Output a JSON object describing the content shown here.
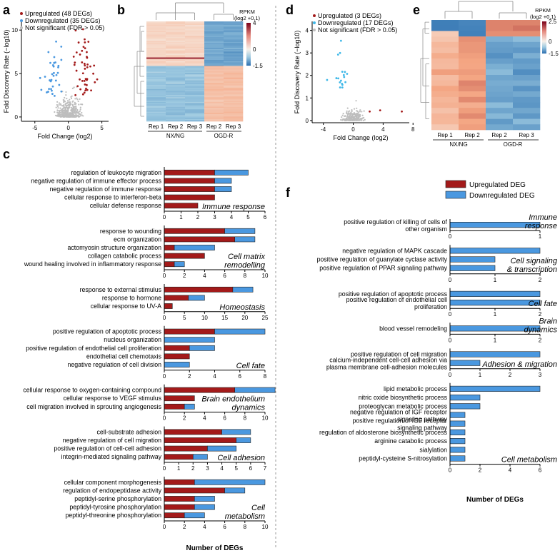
{
  "colors": {
    "up": "#a31a1a",
    "down": "#4a98e0",
    "ns": "#bdbdbd",
    "vol_down_d": "#3fb8e8",
    "heat_low": "#2166ac",
    "heat_mid": "#f7f7f7",
    "heat_high": "#67001f"
  },
  "panels": {
    "a": "a",
    "b": "b",
    "c": "c",
    "d": "d",
    "e": "e",
    "f": "f"
  },
  "volcano_a": {
    "legend": [
      "Upregulated (48 DEGs)",
      "Downregulated (35 DEGs)",
      "Not significant (FDR > 0.05)"
    ],
    "xlabel": "Fold Change (log2)",
    "ylabel": "Fold Discovery Rate (−log10)",
    "xticks": [
      "-5",
      "0",
      "5"
    ],
    "yticks": [
      "0",
      "5",
      "10"
    ],
    "xlim": [
      -7,
      6
    ],
    "ylim": [
      -0.5,
      11
    ]
  },
  "volcano_d": {
    "legend": [
      "Upregulated (3 DEGs)",
      "Downregulated (17 DEGs)",
      "Not significant (FDR > 0.05)"
    ],
    "xlabel": "Fold Change (log2)",
    "ylabel": "Fold Discovery Rate (−log10)",
    "xticks": [
      "-4",
      "0",
      "4",
      "8"
    ],
    "yticks": [
      "0",
      "1",
      "2",
      "3",
      "4"
    ],
    "xlim": [
      -5.5,
      7.5
    ],
    "ylim": [
      -0.1,
      4.4
    ]
  },
  "heatmap_b": {
    "scale_title": [
      "RPKM",
      "(log2 +0,1)"
    ],
    "scale_ticks": [
      "4",
      "0",
      "-1.5"
    ],
    "reps": [
      "Rep 1",
      "Rep 2",
      "Rep 3",
      "Rep 2",
      "Rep 3"
    ],
    "groups": [
      "NX/NG",
      "OGD-R"
    ]
  },
  "heatmap_e": {
    "scale_title": [
      "RPKM",
      "(log2 +0,1)"
    ],
    "scale_ticks": [
      "2.5",
      "0",
      "-1.5"
    ],
    "reps": [
      "Rep 1",
      "Rep 2",
      "Rep 2",
      "Rep 3"
    ],
    "groups": [
      "NX/NG",
      "OGD-R"
    ]
  },
  "chart_data": [
    {
      "type": "bar",
      "panel": "c",
      "stacked": true,
      "xlabel": "Number of DEGs",
      "series_names": [
        "Upregulated DEG",
        "Downregulated DEG"
      ],
      "groups": [
        {
          "title": "Immune response",
          "xmax": 6,
          "ticks": [
            "0",
            "1",
            "2",
            "3",
            "4",
            "5",
            "6"
          ],
          "terms": [
            "regulation of leukocyte migration",
            "negative regulation of immune effector process",
            "negative regulation of immune response",
            "cellular response to interferon-beta",
            "cellular defense response"
          ],
          "up": [
            3,
            3,
            3,
            3,
            2
          ],
          "down": [
            2,
            1,
            1,
            0,
            0
          ]
        },
        {
          "title": "Cell matrix remodelling",
          "xmax": 10,
          "ticks": [
            "0",
            "2",
            "4",
            "6",
            "8",
            "10"
          ],
          "terms": [
            "response to wounding",
            "ecm organization",
            "actomyosin structure organization",
            "collagen catabolic process",
            "wound healing involved in inflammatory response"
          ],
          "up": [
            6,
            7,
            1,
            4,
            1
          ],
          "down": [
            3,
            2,
            4,
            0,
            1
          ]
        },
        {
          "title": "Homeostasis",
          "xmax": 25,
          "ticks": [
            "0",
            "5",
            "10",
            "15",
            "20",
            "25"
          ],
          "terms": [
            "response to external stimulus",
            "response to hormone",
            "cellular response to UV-A"
          ],
          "up": [
            17,
            6,
            2
          ],
          "down": [
            5,
            4,
            0
          ]
        },
        {
          "title": "Cell fate",
          "xmax": 8,
          "ticks": [
            "0",
            "2",
            "4",
            "6",
            "8"
          ],
          "terms": [
            "positive regulation of apoptotic process",
            "nucleus organization",
            "positive regulation of endothelial cell proliferation",
            "endothelial cell chemotaxis",
            "negative regulation of cell division"
          ],
          "up": [
            4,
            0,
            2,
            2,
            0
          ],
          "down": [
            4,
            4,
            2,
            0,
            2
          ]
        },
        {
          "title": "Brain endothelium dynamics",
          "xmax": 10,
          "ticks": [
            "0",
            "2",
            "4",
            "6",
            "8",
            "10"
          ],
          "terms": [
            "cellular response to oxygen-containing compound",
            "cellular response to VEGF stimulus",
            "cell migration involved in sprouting angiogenesis"
          ],
          "up": [
            7,
            3,
            2
          ],
          "down": [
            4,
            0,
            1
          ]
        },
        {
          "title": "Cell adhesion",
          "xmax": 7,
          "ticks": [
            "0",
            "1",
            "2",
            "3",
            "4",
            "5",
            "6",
            "7"
          ],
          "terms": [
            "cell-substrate adhesion",
            "negative regulation of cell migration",
            "positive regulation of cell-cell adhesion",
            "integrin-mediated signaling pathway"
          ],
          "up": [
            4,
            5,
            3,
            2
          ],
          "down": [
            2,
            1,
            2,
            1
          ]
        },
        {
          "title": "Cell metabolism",
          "xmax": 10,
          "ticks": [
            "0",
            "2",
            "4",
            "6",
            "8",
            "10"
          ],
          "terms": [
            "cellular component morphogenesis",
            "regulation of endopeptidase activity",
            "peptidyl-serine phosphorylation",
            "peptidyl-tyrosine phosphorylation",
            "peptidyl-threonine phosphorylation"
          ],
          "up": [
            3,
            6,
            3,
            3,
            2
          ],
          "down": [
            7,
            2,
            2,
            2,
            2
          ]
        }
      ]
    },
    {
      "type": "bar",
      "panel": "f",
      "stacked": true,
      "xlabel": "Number of DEGs",
      "series_names": [
        "Upregulated DEG",
        "Downregulated DEG"
      ],
      "groups": [
        {
          "title": "Immune response",
          "xmax": 1,
          "ticks": [
            "0",
            "1"
          ],
          "terms": [
            "positive regulation of killing of cells of other organism"
          ],
          "up": [
            0
          ],
          "down": [
            1
          ]
        },
        {
          "title": "Cell signaling & transcription",
          "xmax": 2,
          "ticks": [
            "0",
            "1",
            "2"
          ],
          "terms": [
            "negative regulation of MAPK cascade",
            "positive regulation of guanylate cyclase activity",
            "positive regulation of PPAR signaling pathway"
          ],
          "up": [
            0,
            0,
            0
          ],
          "down": [
            2,
            1,
            1
          ]
        },
        {
          "title": "Cell fate",
          "xmax": 2,
          "ticks": [
            "0",
            "1",
            "2"
          ],
          "terms": [
            "positive regulation of apoptotic process",
            "positive regulation of endothelial cell proliferation"
          ],
          "up": [
            0,
            0
          ],
          "down": [
            2,
            2
          ]
        },
        {
          "title": "Brain dynamics",
          "xmax": 2,
          "ticks": [
            "0",
            "1",
            "2"
          ],
          "terms": [
            "blood vessel remodeling"
          ],
          "up": [
            0
          ],
          "down": [
            2
          ]
        },
        {
          "title": "Adhesion & migration",
          "xmax": 3,
          "ticks": [
            "0",
            "1",
            "2",
            "3"
          ],
          "terms": [
            "positive regulation of cell migration",
            "calcium-independent cell-cell adhesion via plasma membrane cell-adhesion molecules"
          ],
          "up": [
            0,
            0
          ],
          "down": [
            3,
            1
          ]
        },
        {
          "title": "Cell metabolism",
          "xmax": 6,
          "ticks": [
            "0",
            "2",
            "4",
            "6"
          ],
          "terms": [
            "lipid metabolic process",
            "nitric oxide biosynthetic process",
            "proteoglycan metabolic process",
            "negative regulation of IGF receptor signaling pathway",
            "positive regulation of IGF receptor signaling pathway",
            "regulation of aldosterone biosynthetic process",
            "arginine catabolic process",
            "sialylation",
            "peptidyl-cysteine S-nitrosylation"
          ],
          "up": [
            0,
            0,
            0,
            0,
            0,
            0,
            0,
            0,
            0
          ],
          "down": [
            6,
            2,
            2,
            1,
            1,
            1,
            1,
            1,
            1
          ]
        }
      ]
    }
  ]
}
